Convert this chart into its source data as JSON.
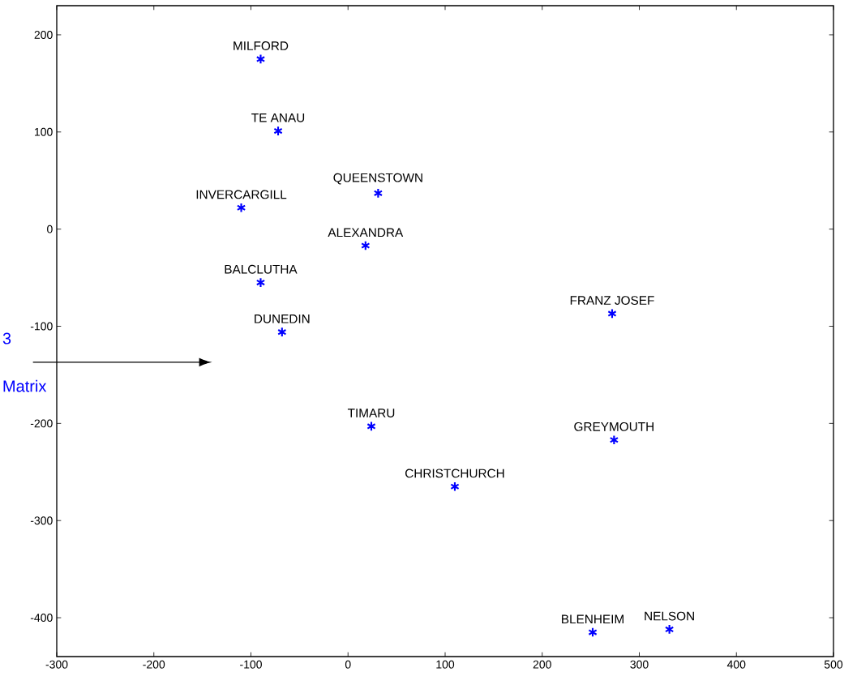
{
  "chart_data": {
    "type": "scatter",
    "color": "#0000ff",
    "marker": "cross",
    "x": [
      -90,
      -72,
      -110,
      31,
      18,
      -90,
      -68,
      272,
      24,
      274,
      110,
      252,
      331
    ],
    "values": [
      175,
      101,
      22,
      37,
      -17,
      -55,
      -106,
      -87,
      -203,
      -217,
      -265,
      -415,
      -412
    ],
    "xlim": [
      -300,
      500
    ],
    "ylim": [
      -440,
      230
    ],
    "xticks": [
      -300,
      -200,
      -100,
      0,
      100,
      200,
      300,
      400,
      500
    ],
    "yticks": [
      -400,
      -300,
      -200,
      -100,
      0,
      100,
      200
    ],
    "annotations": [
      "3",
      "Matrix",
      {
        "text": "MILFORD",
        "x": -90,
        "y": 175
      },
      {
        "text": "TE ANAU",
        "x": -72,
        "y": 101
      },
      {
        "text": "INVERCARGILL",
        "x": -110,
        "y": 22
      },
      {
        "text": "QUEENSTOWN",
        "x": 31,
        "y": 37
      },
      {
        "text": "ALEXANDRA",
        "x": 18,
        "y": -17
      },
      {
        "text": "BALCLUTHA",
        "x": -90,
        "y": -55
      },
      {
        "text": "DUNEDIN",
        "x": -68,
        "y": -106
      },
      {
        "text": "FRANZ JOSEF",
        "x": 272,
        "y": -87
      },
      {
        "text": "TIMARU",
        "x": 24,
        "y": -203
      },
      {
        "text": "GREYMOUTH",
        "x": 274,
        "y": -217
      },
      {
        "text": "CHRISTCHURCH",
        "x": 110,
        "y": -265
      },
      {
        "text": "BLENHEIM",
        "x": 252,
        "y": -415
      },
      {
        "text": "NELSON",
        "x": 331,
        "y": -412
      }
    ]
  }
}
